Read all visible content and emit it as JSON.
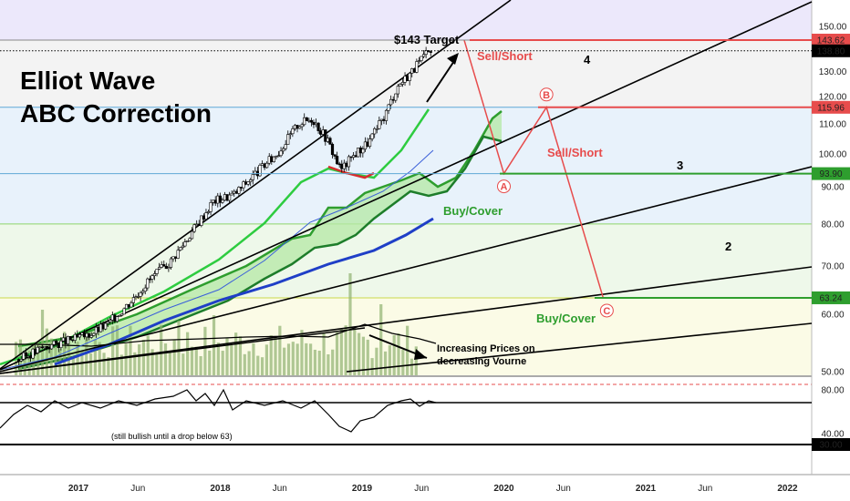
{
  "chart_data": {
    "type": "line",
    "title_line1": "Elliot Wave",
    "title_line2": "ABC Correction",
    "price_axis": {
      "ticks": [
        50,
        60,
        70,
        80,
        90,
        100,
        110,
        120,
        130,
        150
      ],
      "tick_labels": [
        "50.00",
        "60.00",
        "70.00",
        "80.00",
        "90.00",
        "100.00",
        "110.00",
        "120.00",
        "130.00",
        "150.00"
      ],
      "range": [
        48,
        158
      ],
      "scale": "log"
    },
    "time_axis": {
      "labels": [
        "2017",
        "Jun",
        "2018",
        "Jun",
        "2019",
        "Jun",
        "2020",
        "Jun",
        "2021",
        "Jun",
        "2022"
      ],
      "years": [
        2017.0,
        2017.42,
        2018.0,
        2018.42,
        2019.0,
        2019.42,
        2020.0,
        2020.42,
        2021.0,
        2021.42,
        2022.0
      ]
    },
    "price_levels": [
      {
        "label": "143.62",
        "value": 143.62,
        "color": "#e74c4c"
      },
      {
        "label": "138.80",
        "value": 138.8,
        "color": "#000000"
      },
      {
        "label": "115.96",
        "value": 115.96,
        "color": "#e74c4c"
      },
      {
        "label": "93.90",
        "value": 93.9,
        "color": "#2e9e2e"
      },
      {
        "label": "63.24",
        "value": 63.24,
        "color": "#2e9e2e"
      }
    ],
    "rsi_axis": {
      "ticks": [
        80,
        40
      ],
      "tick_labels": [
        "80.00",
        "40.00"
      ],
      "level_label": "30.00",
      "level": 30
    },
    "price_series": {
      "name": "",
      "t": [
        2016.58,
        2016.75,
        2016.9,
        2017.05,
        2017.2,
        2017.35,
        2017.5,
        2017.65,
        2017.8,
        2017.95,
        2018.1,
        2018.25,
        2018.4,
        2018.55,
        2018.65,
        2018.75,
        2018.85,
        2018.95,
        2019.05,
        2019.15,
        2019.25,
        2019.35,
        2019.45,
        2019.5
      ],
      "v": [
        52,
        54,
        55,
        56,
        58,
        62,
        67,
        71,
        78,
        86,
        88,
        94,
        100,
        110,
        112,
        105,
        95,
        100,
        104,
        112,
        124,
        130,
        137,
        139
      ]
    },
    "projection": {
      "t": [
        2019.72,
        2020.0,
        2020.3,
        2020.7
      ],
      "v": [
        143.62,
        93.9,
        115.96,
        63.24
      ]
    },
    "wave_points": [
      "A",
      "B",
      "C"
    ],
    "wave_numbers": [
      "4",
      "3",
      "2"
    ],
    "annotations": {
      "target": "$143 Target",
      "sell_short_1": "Sell/Short",
      "sell_short_2": "Sell/Short",
      "buy_cover_1": "Buy/Cover",
      "buy_cover_2": "Buy/Cover",
      "volume_note_1": "Increasing Prices on",
      "volume_note_2": "decreasing Vourne",
      "rsi_note": "(still bullish until a drop below 63)"
    },
    "colors": {
      "sell": "#e74c4c",
      "buy": "#2e9e2e",
      "top_band": "#ece8fb",
      "mid_band": "#e8f2fb",
      "low_band": "#eef8ea",
      "vol_band": "#fbfbe6"
    }
  }
}
